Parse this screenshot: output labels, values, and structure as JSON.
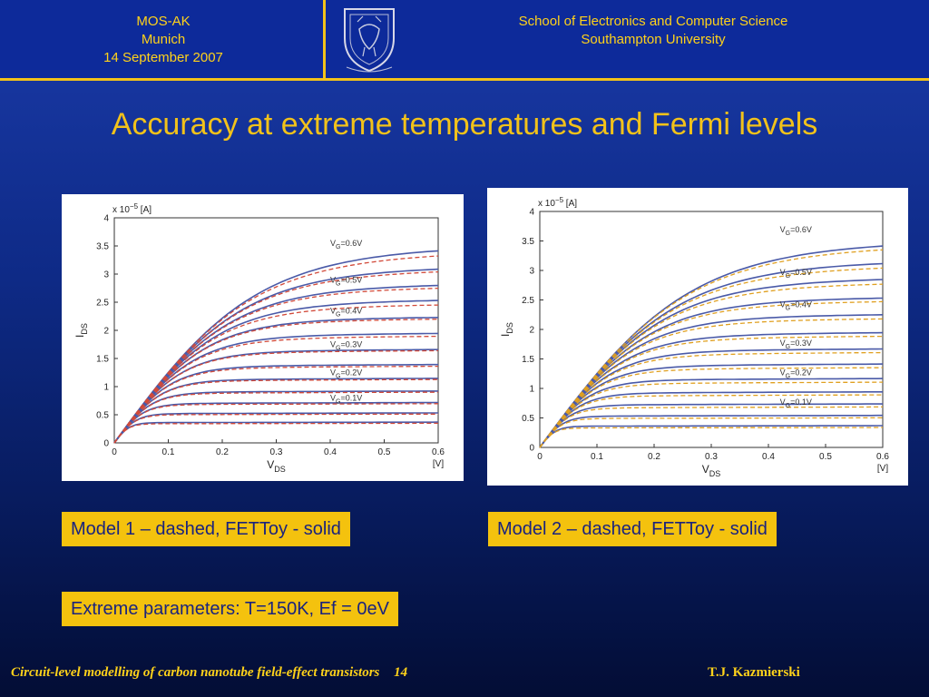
{
  "header": {
    "left_lines": [
      "MOS-AK",
      "Munich",
      "14 September 2007"
    ],
    "right_lines": [
      "School of Electronics and Computer Science",
      "Southampton University"
    ]
  },
  "slide": {
    "title": "Accuracy at extreme temperatures and Fermi levels"
  },
  "captions": {
    "model1": "Model 1 – dashed, FETToy - solid",
    "model2": "Model 2 – dashed, FETToy - solid",
    "params": "Extreme parameters: T=150K, Ef = 0eV"
  },
  "footer": {
    "left": "Circuit-level modelling of carbon nanotube field-effect transistors",
    "page": "14",
    "right": "T.J. Kazmierski"
  },
  "colors": {
    "accent": "#f2c21a",
    "background": "#0e2a86",
    "solid_curve": "#4a5aa8",
    "dashed_curve_model1": "#d24a3a",
    "dashed_curve_model2": "#e0a020"
  },
  "chart_data": [
    {
      "type": "line",
      "ylabel_main": "I",
      "ylabel_sub": "DS",
      "xlabel_main": "V",
      "xlabel_sub": "DS",
      "x_unit": "[V]",
      "y_exp_prefix": "x 10",
      "y_exp_power": "−5",
      "y_unit": "[A]",
      "xlim": [
        0,
        0.6
      ],
      "ylim": [
        0,
        4
      ],
      "xticks": [
        "0",
        "0.1",
        "0.2",
        "0.3",
        "0.4",
        "0.5",
        "0.6"
      ],
      "yticks": [
        "0",
        "0.5",
        "1",
        "1.5",
        "2",
        "2.5",
        "3",
        "3.5",
        "4"
      ],
      "solid_saturation": [
        3.4,
        3.05,
        2.75,
        2.48,
        2.18,
        1.9,
        1.62,
        1.36,
        1.12,
        0.9,
        0.7,
        0.52,
        0.36
      ],
      "dashed_saturation": [
        3.3,
        3.0,
        2.7,
        2.4,
        2.15,
        1.85,
        1.6,
        1.33,
        1.1,
        0.88,
        0.68,
        0.5,
        0.34
      ],
      "solid_series_name": "FETToy",
      "dashed_series_name": "Model 1",
      "annotations": [
        {
          "main": "V",
          "sub": "G",
          "tail": "=0.6V",
          "x": 0.4,
          "y": 3.5
        },
        {
          "main": "V",
          "sub": "G",
          "tail": "=0.5V",
          "x": 0.4,
          "y": 2.85
        },
        {
          "main": "V",
          "sub": "G",
          "tail": "=0.4V",
          "x": 0.4,
          "y": 2.3
        },
        {
          "main": "V",
          "sub": "G",
          "tail": "=0.3V",
          "x": 0.4,
          "y": 1.7
        },
        {
          "main": "V",
          "sub": "G",
          "tail": "=0.2V",
          "x": 0.4,
          "y": 1.2
        },
        {
          "main": "V",
          "sub": "G",
          "tail": "=0.1V",
          "x": 0.4,
          "y": 0.75
        }
      ]
    },
    {
      "type": "line",
      "ylabel_main": "I",
      "ylabel_sub": "DS",
      "xlabel_main": "V",
      "xlabel_sub": "DS",
      "x_unit": "[V]",
      "y_exp_prefix": "x 10",
      "y_exp_power": "−5",
      "y_unit": "[A]",
      "xlim": [
        0,
        0.6
      ],
      "ylim": [
        0,
        4
      ],
      "xticks": [
        "0",
        "0.1",
        "0.2",
        "0.3",
        "0.4",
        "0.5",
        "0.6"
      ],
      "yticks": [
        "0",
        "0.5",
        "1",
        "1.5",
        "2",
        "2.5",
        "3",
        "3.5",
        "4"
      ],
      "solid_saturation": [
        3.4,
        3.08,
        2.8,
        2.48,
        2.2,
        1.9,
        1.63,
        1.38,
        1.14,
        0.92,
        0.72,
        0.53,
        0.36
      ],
      "dashed_saturation": [
        3.33,
        3.0,
        2.72,
        2.42,
        2.13,
        1.84,
        1.57,
        1.32,
        1.08,
        0.87,
        0.67,
        0.49,
        0.33
      ],
      "solid_series_name": "FETToy",
      "dashed_series_name": "Model 2",
      "annotations": [
        {
          "main": "V",
          "sub": "G",
          "tail": "=0.6V",
          "x": 0.42,
          "y": 3.65
        },
        {
          "main": "V",
          "sub": "G",
          "tail": "=0.5V",
          "x": 0.42,
          "y": 2.92
        },
        {
          "main": "V",
          "sub": "G",
          "tail": "=0.4V",
          "x": 0.42,
          "y": 2.38
        },
        {
          "main": "V",
          "sub": "G",
          "tail": "=0.3V",
          "x": 0.42,
          "y": 1.72
        },
        {
          "main": "V",
          "sub": "G",
          "tail": "=0.2V",
          "x": 0.42,
          "y": 1.22
        },
        {
          "main": "V",
          "sub": "G",
          "tail": "=0.1V",
          "x": 0.42,
          "y": 0.72
        }
      ]
    }
  ]
}
